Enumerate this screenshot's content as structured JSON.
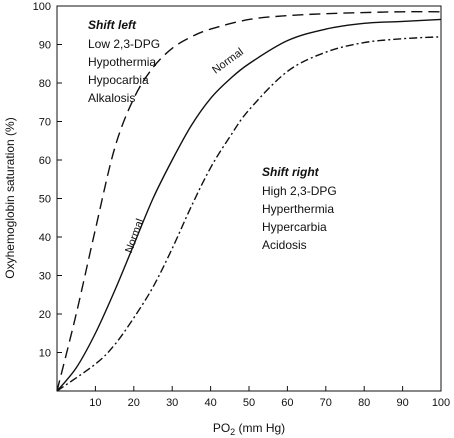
{
  "chart_data": {
    "type": "line",
    "title": "",
    "xlabel": {
      "main": "PO",
      "sub": "2",
      "unit": " (mm Hg)"
    },
    "ylabel": "Oxyhemoglobin saturation (%)",
    "xlim": [
      0,
      100
    ],
    "ylim": [
      0,
      100
    ],
    "x_ticks": [
      10,
      20,
      30,
      40,
      50,
      60,
      70,
      80,
      90,
      100
    ],
    "y_ticks": [
      10,
      20,
      30,
      40,
      50,
      60,
      70,
      80,
      90,
      100
    ],
    "grid": false,
    "series": [
      {
        "key": "left",
        "style": "dashed",
        "x": [
          0,
          5,
          10,
          15,
          20,
          25,
          30,
          35,
          40,
          50,
          60,
          70,
          80,
          90,
          100
        ],
        "y": [
          0,
          20,
          42,
          63,
          76,
          84,
          89,
          92,
          94,
          96.5,
          97.5,
          98,
          98.3,
          98.5,
          98.5
        ]
      },
      {
        "key": "normal",
        "style": "solid",
        "x": [
          0,
          5,
          10,
          15,
          20,
          25,
          30,
          35,
          40,
          45,
          50,
          60,
          70,
          80,
          90,
          100
        ],
        "y": [
          0,
          6,
          15,
          26,
          38,
          50,
          60,
          69,
          76,
          81,
          85,
          91,
          94,
          95.5,
          96,
          96.5
        ]
      },
      {
        "key": "right",
        "style": "dashdot",
        "x": [
          0,
          10,
          15,
          20,
          25,
          30,
          35,
          40,
          45,
          50,
          60,
          70,
          80,
          90,
          100
        ],
        "y": [
          0,
          7,
          12,
          19,
          27,
          37,
          48,
          58,
          66,
          73,
          83,
          88,
          90.5,
          91.5,
          92
        ]
      }
    ],
    "curve_labels": [
      {
        "text": "Normal",
        "x": 21,
        "y": 40,
        "angle": -70
      },
      {
        "text": "Normal",
        "x": 45,
        "y": 85,
        "angle": -36
      }
    ],
    "annotations": {
      "shift_left": {
        "heading": "Shift left",
        "lines": [
          "Low 2,3-DPG",
          "Hypothermia",
          "Hypocarbia",
          "Alkalosis"
        ]
      },
      "shift_right": {
        "heading": "Shift right",
        "lines": [
          "High 2,3-DPG",
          "Hyperthermia",
          "Hypercarbia",
          "Acidosis"
        ]
      }
    }
  }
}
